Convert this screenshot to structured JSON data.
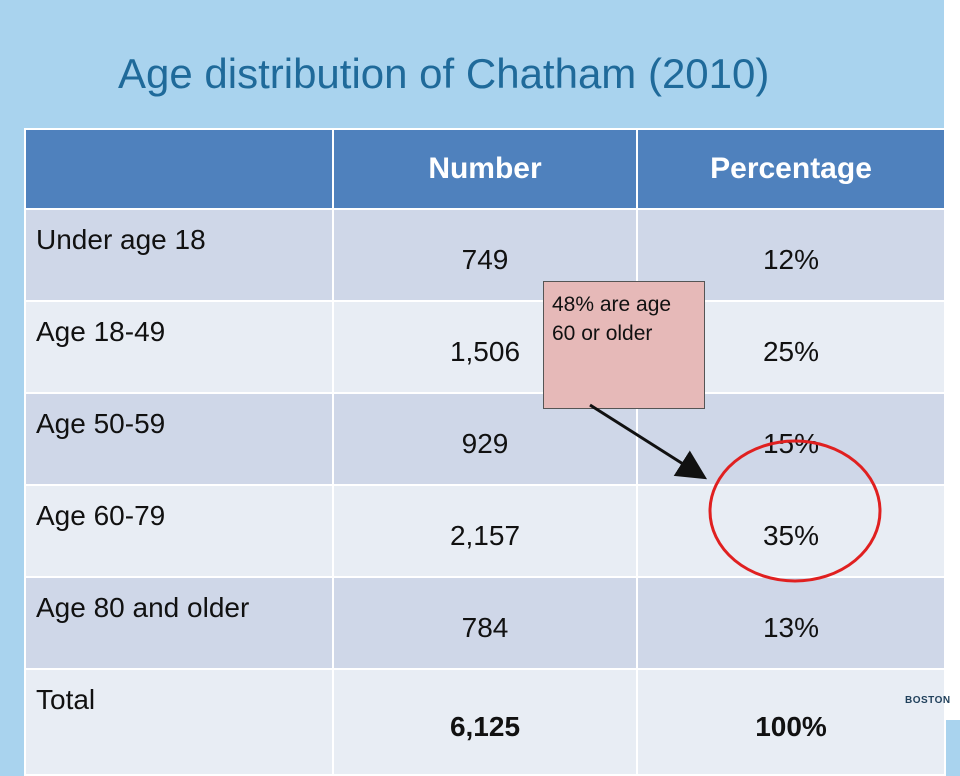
{
  "title": "Age distribution of Chatham (2010)",
  "table": {
    "headers": [
      "",
      "Number",
      "Percentage"
    ],
    "rows": [
      {
        "label": "Under age 18",
        "number": "749",
        "percentage": "12%"
      },
      {
        "label": "Age 18-49",
        "number": "1,506",
        "percentage": "25%"
      },
      {
        "label": "Age 50-59",
        "number": "929",
        "percentage": "15%"
      },
      {
        "label": "Age 60-79",
        "number": "2,157",
        "percentage": "35%"
      },
      {
        "label": "Age 80 and older",
        "number": "784",
        "percentage": "13%"
      }
    ],
    "total": {
      "label": "Total",
      "number": "6,125",
      "percentage": "100%"
    }
  },
  "callout": {
    "text": "48% are age 60 or older"
  },
  "logo": {
    "text": "BOSTON"
  },
  "colors": {
    "background": "#a9d3ee",
    "header": "#4f81bd",
    "row_dark": "#cfd7e8",
    "row_light": "#e8edf4",
    "callout": "#e6b9b8",
    "circle": "#e02020"
  }
}
